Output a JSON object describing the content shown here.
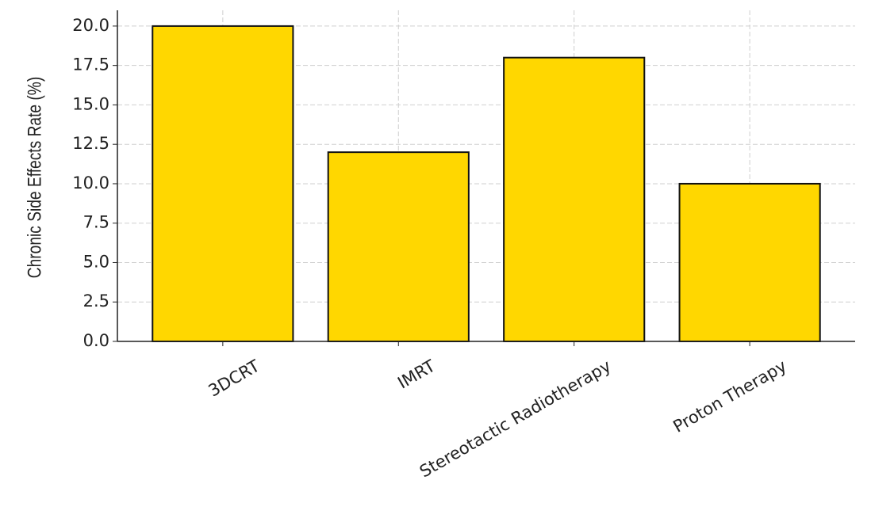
{
  "chart_data": {
    "type": "bar",
    "y_label": "Chronic Side Effects Rate (%)",
    "categories": [
      "3DCRT",
      "IMRT",
      "Stereotactic Radiotherapy",
      "Proton Therapy"
    ],
    "values": [
      20,
      12,
      18,
      10
    ],
    "color": "#ffd700",
    "edge_color": "#111111",
    "ylim": [
      0,
      21
    ],
    "yticks": [
      {
        "value": 0,
        "label": "0.0"
      },
      2.5,
      {
        "value": 5,
        "label": "5.0"
      },
      7.5,
      {
        "value": 10,
        "label": "10.0"
      },
      12.5,
      {
        "value": 15,
        "label": "15.0"
      },
      17.5,
      {
        "value": 20,
        "label": "20.0"
      }
    ],
    "grid": true
  }
}
